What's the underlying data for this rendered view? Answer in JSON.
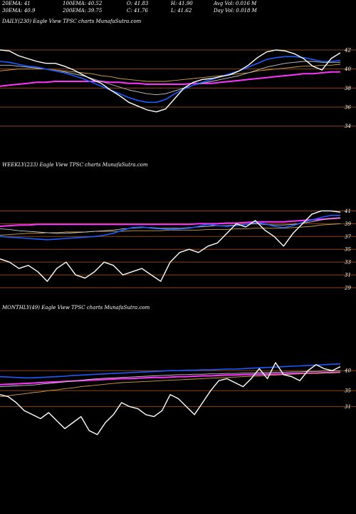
{
  "header": {
    "row1": [
      "20EMA: 41",
      "100EMA: 40.52",
      "O: 41.83",
      "H: 41.90",
      "Avg Vol: 0.016  M"
    ],
    "row2": [
      "30EMA: 40.9",
      "200EMA: 39.75",
      "C: 41.76",
      "L: 41.62",
      "Day Vol: 0.018 M"
    ]
  },
  "colors": {
    "background": "#000000",
    "price": "#ffffff",
    "grid": "#8b4513",
    "ema_blue": "#1e5bff",
    "ema_magenta": "#ff33ff",
    "ema_orange": "#d2a04a",
    "ema_white": "#c8c8c8"
  },
  "chart_data": [
    {
      "type": "line",
      "title": "DAILY(230) Eagle  View  TPSC charts MunafaSutra.com",
      "y_ticks": [
        "42",
        "40",
        "38",
        "36",
        "34"
      ],
      "ylim": [
        33,
        43.5
      ],
      "grid": true,
      "series": [
        {
          "values": [
            42.0,
            41.9,
            41.4,
            41.1,
            40.8,
            40.6,
            40.6,
            40.3,
            39.9,
            39.4,
            38.9,
            38.5,
            37.8,
            37.2,
            36.5,
            36.1,
            35.7,
            35.5,
            35.8,
            36.9,
            38.0,
            38.6,
            38.9,
            39.0,
            39.2,
            39.4,
            39.8,
            40.4,
            41.2,
            41.8,
            42.0,
            41.9,
            41.6,
            41.1,
            40.3,
            39.9,
            41.1,
            41.7
          ]
        },
        {
          "values": [
            40.8,
            40.7,
            40.5,
            40.3,
            40.2,
            40.0,
            39.8,
            39.6,
            39.3,
            39.0,
            38.6,
            38.2,
            37.8,
            37.4,
            37.0,
            36.7,
            36.5,
            36.5,
            36.8,
            37.4,
            37.9,
            38.3,
            38.6,
            38.9,
            39.2,
            39.5,
            39.8,
            40.2,
            40.6,
            41.0,
            41.2,
            41.3,
            41.3,
            41.2,
            41.0,
            40.8,
            40.8,
            40.9
          ]
        },
        {
          "values": [
            40.4,
            40.4,
            40.3,
            40.2,
            40.1,
            40.0,
            39.8,
            39.7,
            39.5,
            39.3,
            39.0,
            38.7,
            38.4,
            38.1,
            37.8,
            37.6,
            37.4,
            37.3,
            37.4,
            37.7,
            38.0,
            38.3,
            38.5,
            38.7,
            38.9,
            39.1,
            39.3,
            39.6,
            39.9,
            40.2,
            40.4,
            40.6,
            40.7,
            40.8,
            40.8,
            40.7,
            40.7,
            40.7
          ]
        },
        {
          "values": [
            39.8,
            39.9,
            40.0,
            40.0,
            40.0,
            40.0,
            39.9,
            39.8,
            39.7,
            39.6,
            39.5,
            39.3,
            39.2,
            39.0,
            38.9,
            38.8,
            38.7,
            38.7,
            38.7,
            38.8,
            38.9,
            39.0,
            39.1,
            39.2,
            39.3,
            39.4,
            39.5,
            39.6,
            39.8,
            39.9,
            40.0,
            40.1,
            40.2,
            40.3,
            40.3,
            40.4,
            40.4,
            40.5
          ]
        },
        {
          "values": [
            38.2,
            38.3,
            38.4,
            38.5,
            38.6,
            38.6,
            38.7,
            38.7,
            38.7,
            38.7,
            38.7,
            38.7,
            38.6,
            38.6,
            38.5,
            38.5,
            38.4,
            38.4,
            38.4,
            38.4,
            38.4,
            38.5,
            38.5,
            38.5,
            38.6,
            38.7,
            38.8,
            38.9,
            39.0,
            39.1,
            39.2,
            39.3,
            39.4,
            39.5,
            39.5,
            39.6,
            39.7,
            39.7
          ]
        }
      ]
    },
    {
      "type": "line",
      "title": "WEEKLY(233) Eagle  View  TPSC charts MunafaSutra.com",
      "y_ticks": [
        "41",
        "39",
        "37",
        "35",
        "33",
        "31",
        "29"
      ],
      "ylim": [
        28,
        42.5
      ],
      "grid": true,
      "series": [
        {
          "values": [
            33.5,
            33.0,
            32.0,
            32.5,
            31.5,
            30.0,
            32.0,
            33.0,
            31.0,
            30.5,
            31.5,
            33.0,
            32.5,
            31.0,
            31.5,
            32.0,
            31.0,
            30.0,
            33.0,
            34.5,
            35.0,
            34.5,
            35.5,
            36.0,
            37.5,
            39.0,
            38.5,
            39.5,
            38.0,
            37.0,
            35.5,
            37.5,
            39.0,
            40.5,
            41.0,
            41.0,
            40.8
          ]
        },
        {
          "values": [
            37.0,
            36.9,
            36.8,
            36.7,
            36.6,
            36.5,
            36.6,
            36.7,
            36.8,
            36.9,
            37.0,
            37.2,
            37.5,
            38.0,
            38.4,
            38.5,
            38.3,
            38.2,
            38.1,
            38.2,
            38.3,
            38.6,
            38.9,
            38.7,
            38.6,
            38.7,
            38.9,
            39.2,
            39.0,
            38.6,
            38.4,
            38.7,
            39.2,
            39.6,
            40.0,
            40.3,
            40.3
          ]
        },
        {
          "values": [
            38.2,
            38.1,
            37.9,
            37.8,
            37.7,
            37.6,
            37.5,
            37.5,
            37.6,
            37.7,
            37.8,
            37.9,
            38.0,
            38.2,
            38.3,
            38.4,
            38.4,
            38.3,
            38.3,
            38.3,
            38.4,
            38.5,
            38.6,
            38.7,
            38.7,
            38.8,
            38.9,
            39.0,
            38.9,
            38.8,
            38.8,
            38.9,
            39.1,
            39.3,
            39.6,
            39.8,
            39.9
          ]
        },
        {
          "values": [
            37.2,
            37.3,
            37.4,
            37.5,
            37.5,
            37.6,
            37.6,
            37.7,
            37.7,
            37.7,
            37.8,
            37.8,
            37.8,
            37.8,
            37.9,
            37.9,
            37.9,
            37.9,
            38.0,
            38.0,
            38.0,
            38.0,
            38.1,
            38.1,
            38.1,
            38.2,
            38.2,
            38.3,
            38.3,
            38.3,
            38.3,
            38.4,
            38.5,
            38.6,
            38.8,
            38.9,
            39.0
          ]
        },
        {
          "values": [
            38.6,
            38.7,
            38.8,
            38.8,
            38.9,
            38.9,
            38.9,
            38.9,
            38.9,
            38.9,
            38.9,
            38.9,
            38.9,
            38.9,
            38.9,
            38.9,
            38.9,
            38.9,
            38.9,
            38.9,
            38.9,
            39.0,
            39.0,
            39.0,
            39.1,
            39.1,
            39.2,
            39.3,
            39.3,
            39.3,
            39.3,
            39.4,
            39.5,
            39.6,
            39.7,
            39.8,
            39.9
          ]
        }
      ]
    },
    {
      "type": "line",
      "title": "MONTHLY(49) Eagle  View  TPSC charts MunafaSutra.com",
      "y_ticks": [
        "40",
        "35",
        "31"
      ],
      "ylim": [
        22,
        47
      ],
      "grid": true,
      "series": [
        {
          "values": [
            34.0,
            33.5,
            32.0,
            30.0,
            29.0,
            28.0,
            29.5,
            27.5,
            25.5,
            27.0,
            28.5,
            25.0,
            24.0,
            27.0,
            29.0,
            32.0,
            31.0,
            30.5,
            29.0,
            28.5,
            30.0,
            34.0,
            33.0,
            31.0,
            29.0,
            32.0,
            35.0,
            37.5,
            38.0,
            37.0,
            36.0,
            38.0,
            40.5,
            38.0,
            42.0,
            39.0,
            38.5,
            37.5,
            40.0,
            41.5,
            40.5,
            40.0,
            41.0
          ]
        },
        {
          "values": [
            38.5,
            38.4,
            38.3,
            38.2,
            38.2,
            38.3,
            38.4,
            38.5,
            38.6,
            38.8,
            38.9,
            39.0,
            39.1,
            39.2,
            39.3,
            39.4,
            39.5,
            39.6,
            39.7,
            39.8,
            39.9,
            40.0,
            40.0,
            40.1,
            40.1,
            40.2,
            40.2,
            40.3,
            40.4,
            40.4,
            40.5,
            40.6,
            40.7,
            40.8,
            40.9,
            41.0,
            41.1,
            41.2,
            41.3,
            41.4,
            41.5,
            41.6,
            41.7
          ]
        },
        {
          "values": [
            36.0,
            36.1,
            36.2,
            36.3,
            36.4,
            36.6,
            36.8,
            37.0,
            37.2,
            37.4,
            37.6,
            37.8,
            38.0,
            38.1,
            38.2,
            38.3,
            38.4,
            38.5,
            38.6,
            38.7,
            38.8,
            38.9,
            39.0,
            39.0,
            39.1,
            39.1,
            39.2,
            39.2,
            39.3,
            39.3,
            39.4,
            39.4,
            39.5,
            39.5,
            39.6,
            39.6,
            39.7,
            39.7,
            39.8,
            39.8,
            39.9,
            39.9,
            40.0
          ]
        },
        {
          "values": [
            33.5,
            33.7,
            34.0,
            34.2,
            34.5,
            34.7,
            35.0,
            35.2,
            35.5,
            35.7,
            36.0,
            36.2,
            36.4,
            36.6,
            36.8,
            37.0,
            37.1,
            37.2,
            37.3,
            37.4,
            37.5,
            37.6,
            37.7,
            37.8,
            37.9,
            38.0,
            38.1,
            38.2,
            38.3,
            38.4,
            38.5,
            38.6,
            38.7,
            38.8,
            38.9,
            39.0,
            39.1,
            39.2,
            39.3,
            39.3,
            39.4,
            39.5,
            39.5
          ]
        },
        {
          "values": [
            36.5,
            36.6,
            36.7,
            36.8,
            36.9,
            37.0,
            37.1,
            37.2,
            37.3,
            37.4,
            37.5,
            37.6,
            37.7,
            37.8,
            37.9,
            38.0,
            38.0,
            38.1,
            38.2,
            38.3,
            38.3,
            38.4,
            38.5,
            38.5,
            38.6,
            38.7,
            38.7,
            38.8,
            38.9,
            38.9,
            39.0,
            39.0,
            39.1,
            39.1,
            39.2,
            39.2,
            39.3,
            39.3,
            39.4,
            39.4,
            39.5,
            39.5,
            39.6
          ]
        }
      ]
    }
  ]
}
